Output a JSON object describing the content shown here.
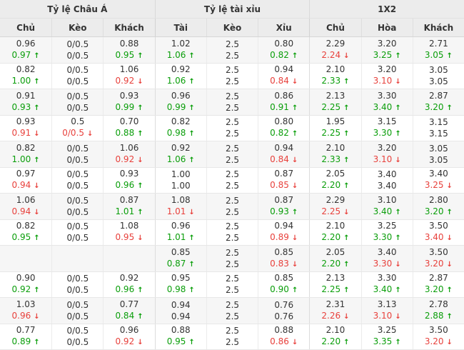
{
  "table": {
    "groups": [
      {
        "label": "Tỷ lệ Châu Á"
      },
      {
        "label": "Tỷ lệ tài xỉu"
      },
      {
        "label": "1X2"
      }
    ],
    "columns": [
      "Chủ",
      "Kèo",
      "Khách",
      "Tài",
      "Kèo",
      "Xỉu",
      "Chủ",
      "Hòa",
      "Khách"
    ],
    "cell_names": [
      "asia-home-odds",
      "asia-handicap",
      "asia-away-odds",
      "ou-over-odds",
      "ou-line",
      "ou-under-odds",
      "1x2-home-odds",
      "1x2-draw-odds",
      "1x2-away-odds"
    ],
    "icons": {
      "up": "↑",
      "down": "↓"
    },
    "colors": {
      "up_green": "#0a9e0a",
      "down_red": "#e8413c",
      "header_bg": "#ececec",
      "row_shaded_bg": "#f6f6f6",
      "text": "#333333"
    },
    "rows": [
      {
        "cells": [
          {
            "v1": "0.96",
            "v2": "0.97",
            "dir": "up"
          },
          {
            "v1": "0/0.5",
            "v2": "0/0.5",
            "dir": ""
          },
          {
            "v1": "0.88",
            "v2": "0.95",
            "dir": "up"
          },
          {
            "v1": "1.02",
            "v2": "1.06",
            "dir": "up"
          },
          {
            "v1": "2.5",
            "v2": "2.5",
            "dir": ""
          },
          {
            "v1": "0.80",
            "v2": "0.82",
            "dir": "up"
          },
          {
            "v1": "2.29",
            "v2": "2.24",
            "dir": "down"
          },
          {
            "v1": "3.20",
            "v2": "3.25",
            "dir": "up"
          },
          {
            "v1": "2.71",
            "v2": "3.05",
            "dir": "up"
          }
        ]
      },
      {
        "cells": [
          {
            "v1": "0.82",
            "v2": "1.00",
            "dir": "up"
          },
          {
            "v1": "0/0.5",
            "v2": "0/0.5",
            "dir": ""
          },
          {
            "v1": "1.06",
            "v2": "0.92",
            "dir": "down"
          },
          {
            "v1": "0.92",
            "v2": "1.06",
            "dir": "up"
          },
          {
            "v1": "2.5",
            "v2": "2.5",
            "dir": ""
          },
          {
            "v1": "0.94",
            "v2": "0.84",
            "dir": "down"
          },
          {
            "v1": "2.10",
            "v2": "2.33",
            "dir": "up"
          },
          {
            "v1": "3.20",
            "v2": "3.10",
            "dir": "down"
          },
          {
            "v1": "3.05",
            "v2": "3.05",
            "dir": ""
          }
        ]
      },
      {
        "cells": [
          {
            "v1": "0.91",
            "v2": "0.93",
            "dir": "up"
          },
          {
            "v1": "0/0.5",
            "v2": "0/0.5",
            "dir": ""
          },
          {
            "v1": "0.93",
            "v2": "0.99",
            "dir": "up"
          },
          {
            "v1": "0.96",
            "v2": "0.99",
            "dir": "up"
          },
          {
            "v1": "2.5",
            "v2": "2.5",
            "dir": ""
          },
          {
            "v1": "0.86",
            "v2": "0.91",
            "dir": "up"
          },
          {
            "v1": "2.13",
            "v2": "2.25",
            "dir": "up"
          },
          {
            "v1": "3.30",
            "v2": "3.40",
            "dir": "up"
          },
          {
            "v1": "2.87",
            "v2": "3.20",
            "dir": "up"
          }
        ]
      },
      {
        "cells": [
          {
            "v1": "0.93",
            "v2": "0.91",
            "dir": "down"
          },
          {
            "v1": "0.5",
            "v2": "0/0.5",
            "dir": "down"
          },
          {
            "v1": "0.70",
            "v2": "0.88",
            "dir": "up"
          },
          {
            "v1": "0.82",
            "v2": "0.98",
            "dir": "up"
          },
          {
            "v1": "2.5",
            "v2": "2.5",
            "dir": ""
          },
          {
            "v1": "0.80",
            "v2": "0.82",
            "dir": "up"
          },
          {
            "v1": "1.95",
            "v2": "2.25",
            "dir": "up"
          },
          {
            "v1": "3.15",
            "v2": "3.30",
            "dir": "up"
          },
          {
            "v1": "3.15",
            "v2": "3.15",
            "dir": ""
          }
        ]
      },
      {
        "cells": [
          {
            "v1": "0.82",
            "v2": "1.00",
            "dir": "up"
          },
          {
            "v1": "0/0.5",
            "v2": "0/0.5",
            "dir": ""
          },
          {
            "v1": "1.06",
            "v2": "0.92",
            "dir": "down"
          },
          {
            "v1": "0.92",
            "v2": "1.06",
            "dir": "up"
          },
          {
            "v1": "2.5",
            "v2": "2.5",
            "dir": ""
          },
          {
            "v1": "0.94",
            "v2": "0.84",
            "dir": "down"
          },
          {
            "v1": "2.10",
            "v2": "2.33",
            "dir": "up"
          },
          {
            "v1": "3.20",
            "v2": "3.10",
            "dir": "down"
          },
          {
            "v1": "3.05",
            "v2": "3.05",
            "dir": ""
          }
        ]
      },
      {
        "cells": [
          {
            "v1": "0.97",
            "v2": "0.94",
            "dir": "down"
          },
          {
            "v1": "0/0.5",
            "v2": "0/0.5",
            "dir": ""
          },
          {
            "v1": "0.93",
            "v2": "0.96",
            "dir": "up"
          },
          {
            "v1": "1.00",
            "v2": "1.00",
            "dir": ""
          },
          {
            "v1": "2.5",
            "v2": "2.5",
            "dir": ""
          },
          {
            "v1": "0.87",
            "v2": "0.85",
            "dir": "down"
          },
          {
            "v1": "2.05",
            "v2": "2.20",
            "dir": "up"
          },
          {
            "v1": "3.40",
            "v2": "3.40",
            "dir": ""
          },
          {
            "v1": "3.40",
            "v2": "3.25",
            "dir": "down"
          }
        ]
      },
      {
        "cells": [
          {
            "v1": "1.06",
            "v2": "0.94",
            "dir": "down"
          },
          {
            "v1": "0/0.5",
            "v2": "0/0.5",
            "dir": ""
          },
          {
            "v1": "0.87",
            "v2": "1.01",
            "dir": "up"
          },
          {
            "v1": "1.08",
            "v2": "1.01",
            "dir": "down"
          },
          {
            "v1": "2.5",
            "v2": "2.5",
            "dir": ""
          },
          {
            "v1": "0.87",
            "v2": "0.93",
            "dir": "up"
          },
          {
            "v1": "2.29",
            "v2": "2.25",
            "dir": "down"
          },
          {
            "v1": "3.10",
            "v2": "3.40",
            "dir": "up"
          },
          {
            "v1": "2.80",
            "v2": "3.20",
            "dir": "up"
          }
        ]
      },
      {
        "cells": [
          {
            "v1": "0.82",
            "v2": "0.95",
            "dir": "up"
          },
          {
            "v1": "0/0.5",
            "v2": "0/0.5",
            "dir": ""
          },
          {
            "v1": "1.08",
            "v2": "0.95",
            "dir": "down"
          },
          {
            "v1": "0.96",
            "v2": "1.01",
            "dir": "up"
          },
          {
            "v1": "2.5",
            "v2": "2.5",
            "dir": ""
          },
          {
            "v1": "0.94",
            "v2": "0.89",
            "dir": "down"
          },
          {
            "v1": "2.10",
            "v2": "2.20",
            "dir": "up"
          },
          {
            "v1": "3.25",
            "v2": "3.30",
            "dir": "up"
          },
          {
            "v1": "3.50",
            "v2": "3.40",
            "dir": "down"
          }
        ]
      },
      {
        "cells": [
          {
            "v1": "",
            "v2": "",
            "dir": ""
          },
          {
            "v1": "",
            "v2": "",
            "dir": ""
          },
          {
            "v1": "",
            "v2": "",
            "dir": ""
          },
          {
            "v1": "0.85",
            "v2": "0.87",
            "dir": "up"
          },
          {
            "v1": "2.5",
            "v2": "2.5",
            "dir": ""
          },
          {
            "v1": "0.85",
            "v2": "0.83",
            "dir": "down"
          },
          {
            "v1": "2.05",
            "v2": "2.20",
            "dir": "up"
          },
          {
            "v1": "3.40",
            "v2": "3.30",
            "dir": "down"
          },
          {
            "v1": "3.50",
            "v2": "3.20",
            "dir": "down"
          }
        ]
      },
      {
        "cells": [
          {
            "v1": "0.90",
            "v2": "0.92",
            "dir": "up"
          },
          {
            "v1": "0/0.5",
            "v2": "0/0.5",
            "dir": ""
          },
          {
            "v1": "0.92",
            "v2": "0.96",
            "dir": "up"
          },
          {
            "v1": "0.95",
            "v2": "0.98",
            "dir": "up"
          },
          {
            "v1": "2.5",
            "v2": "2.5",
            "dir": ""
          },
          {
            "v1": "0.85",
            "v2": "0.90",
            "dir": "up"
          },
          {
            "v1": "2.13",
            "v2": "2.25",
            "dir": "up"
          },
          {
            "v1": "3.30",
            "v2": "3.40",
            "dir": "up"
          },
          {
            "v1": "2.87",
            "v2": "3.20",
            "dir": "up"
          }
        ]
      },
      {
        "cells": [
          {
            "v1": "1.03",
            "v2": "0.96",
            "dir": "down"
          },
          {
            "v1": "0/0.5",
            "v2": "0/0.5",
            "dir": ""
          },
          {
            "v1": "0.77",
            "v2": "0.84",
            "dir": "up"
          },
          {
            "v1": "0.94",
            "v2": "0.94",
            "dir": ""
          },
          {
            "v1": "2.5",
            "v2": "2.5",
            "dir": ""
          },
          {
            "v1": "0.76",
            "v2": "0.76",
            "dir": ""
          },
          {
            "v1": "2.31",
            "v2": "2.26",
            "dir": "down"
          },
          {
            "v1": "3.13",
            "v2": "3.10",
            "dir": "down"
          },
          {
            "v1": "2.78",
            "v2": "2.88",
            "dir": "up"
          }
        ]
      },
      {
        "cells": [
          {
            "v1": "0.77",
            "v2": "0.89",
            "dir": "up"
          },
          {
            "v1": "0/0.5",
            "v2": "0/0.5",
            "dir": ""
          },
          {
            "v1": "0.96",
            "v2": "0.92",
            "dir": "down"
          },
          {
            "v1": "0.88",
            "v2": "0.95",
            "dir": "up"
          },
          {
            "v1": "2.5",
            "v2": "2.5",
            "dir": ""
          },
          {
            "v1": "0.88",
            "v2": "0.86",
            "dir": "down"
          },
          {
            "v1": "2.10",
            "v2": "2.20",
            "dir": "up"
          },
          {
            "v1": "3.25",
            "v2": "3.35",
            "dir": "up"
          },
          {
            "v1": "3.50",
            "v2": "3.20",
            "dir": "down"
          }
        ]
      }
    ]
  }
}
